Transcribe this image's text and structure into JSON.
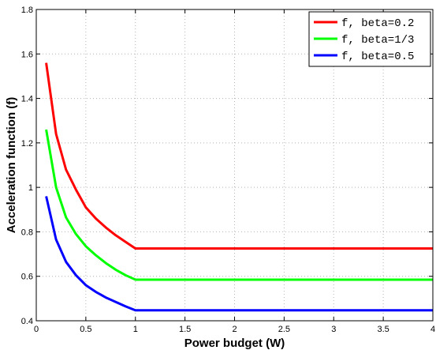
{
  "chart_data": {
    "type": "line",
    "xlabel": "Power budget (W)",
    "ylabel": "Acceleration function (f)",
    "xlim": [
      0,
      4
    ],
    "ylim": [
      0.4,
      1.8
    ],
    "xticks": [
      0,
      0.5,
      1,
      1.5,
      2,
      2.5,
      3,
      3.5,
      4
    ],
    "xtick_labels": [
      "0",
      "0.5",
      "1",
      "1.5",
      "2",
      "2.5",
      "3",
      "3.5",
      "4"
    ],
    "yticks": [
      0.4,
      0.6,
      0.8,
      1.0,
      1.2,
      1.4,
      1.6,
      1.8
    ],
    "ytick_labels": [
      "0.4",
      "0.6",
      "0.8",
      "1",
      "1.2",
      "1.4",
      "1.6",
      "1.8"
    ],
    "grid": true,
    "legend_position": "top-right",
    "x": [
      0.1,
      0.2,
      0.3,
      0.4,
      0.5,
      0.6,
      0.7,
      0.8,
      0.9,
      1.0,
      1.5,
      2.0,
      2.5,
      3.0,
      3.5,
      4.0
    ],
    "series": [
      {
        "name": "f, beta=0.2",
        "color": "#ff0000",
        "values": [
          1.56,
          1.24,
          1.08,
          0.99,
          0.91,
          0.86,
          0.82,
          0.785,
          0.755,
          0.725,
          0.725,
          0.725,
          0.725,
          0.725,
          0.725,
          0.725
        ]
      },
      {
        "name": "f, beta=1/3",
        "color": "#00ff00",
        "values": [
          1.26,
          1.0,
          0.865,
          0.79,
          0.735,
          0.695,
          0.66,
          0.63,
          0.605,
          0.585,
          0.585,
          0.585,
          0.585,
          0.585,
          0.585,
          0.585
        ]
      },
      {
        "name": "f, beta=0.5",
        "color": "#0000ff",
        "values": [
          0.96,
          0.765,
          0.665,
          0.605,
          0.56,
          0.53,
          0.505,
          0.485,
          0.465,
          0.447,
          0.447,
          0.447,
          0.447,
          0.447,
          0.447,
          0.447
        ]
      }
    ]
  }
}
